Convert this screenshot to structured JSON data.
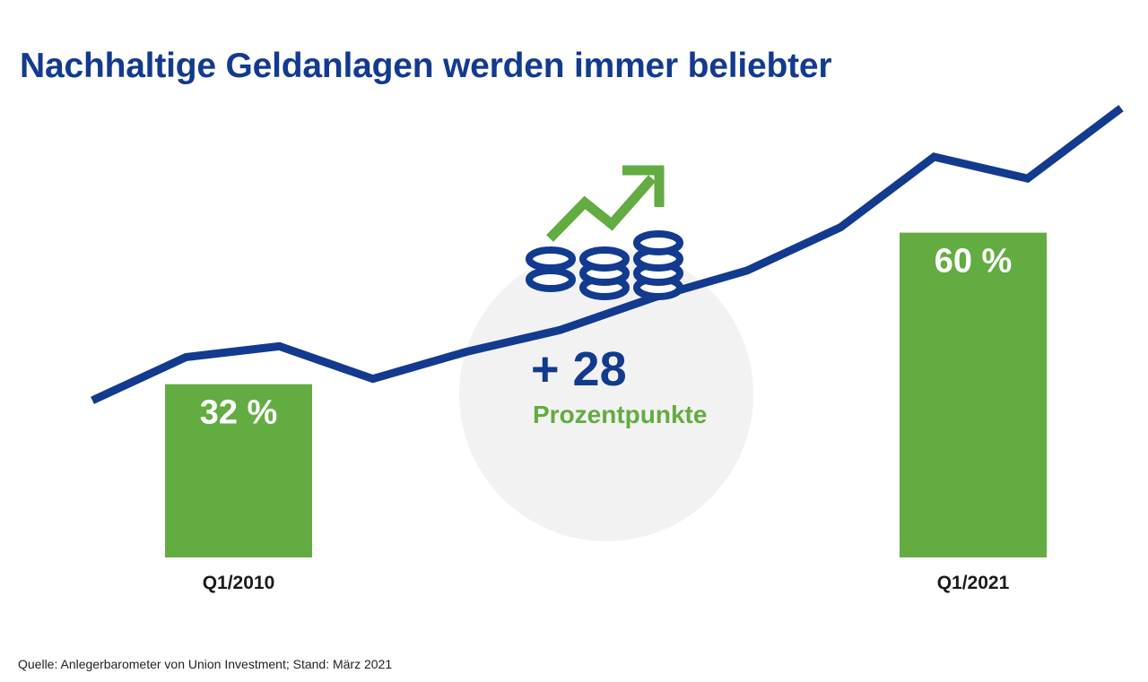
{
  "title": "Nachhaltige Geldanlagen werden immer beliebter",
  "source": "Quelle: Anlegerbarometer von Union Investment; Stand: März 2021",
  "colors": {
    "title": "#123a8f",
    "line": "#123a8f",
    "bar": "#62ac41",
    "highlight_circle": "#f2f2f2",
    "delta_value": "#123a8f",
    "delta_unit": "#62ac41",
    "icon_coins": "#123a8f",
    "icon_arrow": "#62ac41"
  },
  "highlight": {
    "value": "+ 28",
    "unit": "Prozentpunkte",
    "icon": "coins-growth-arrow-icon"
  },
  "chart_data": {
    "type": "bar",
    "categories": [
      "Q1/2010",
      "Q1/2021"
    ],
    "values": [
      32,
      60
    ],
    "value_labels": [
      "32 %",
      "60 %"
    ],
    "ylim": [
      0,
      100
    ],
    "title": "Nachhaltige Geldanlagen werden immer beliebter",
    "grid": false,
    "trend_line": {
      "decorative": true,
      "values": [
        29,
        37,
        39,
        33,
        38,
        42,
        48,
        53,
        61,
        74,
        70,
        83
      ]
    }
  }
}
